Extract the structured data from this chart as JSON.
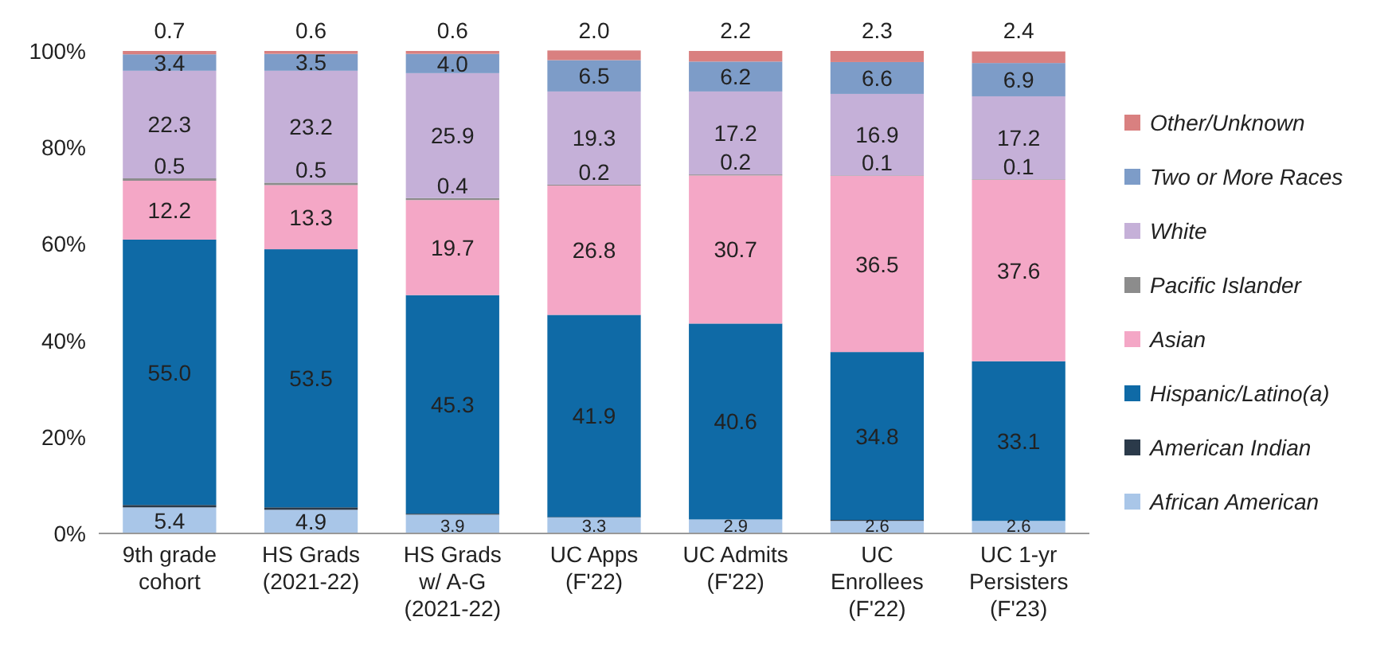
{
  "chart_data": {
    "type": "bar",
    "stacked": true,
    "categories": [
      "9th grade cohort",
      "HS Grads (2021-22)",
      "HS Grads w/ A-G (2021-22)",
      "UC Apps (F'22)",
      "UC Admits (F'22)",
      "UC Enrollees (F'22)",
      "UC 1-yr Persisters (F'23)"
    ],
    "series": [
      {
        "name": "African American",
        "color": "#a9c6e8",
        "values": [
          5.4,
          4.9,
          3.9,
          3.3,
          2.9,
          2.6,
          2.6
        ],
        "value_labels": [
          "5.4",
          "4.9",
          "3.9",
          "3.3",
          "2.9",
          "2.6",
          "2.6"
        ]
      },
      {
        "name": "American Indian",
        "color": "#2b3a4a",
        "values": [
          0.5,
          0.5,
          0.2,
          0.1,
          null,
          0.2,
          null
        ],
        "value_labels": [
          null,
          null,
          null,
          null,
          null,
          null,
          null
        ]
      },
      {
        "name": "Hispanic/Latino(a)",
        "color": "#0f6aa6",
        "values": [
          55.0,
          53.5,
          45.3,
          41.9,
          40.6,
          34.8,
          33.1
        ],
        "value_labels": [
          "55.0",
          "53.5",
          "45.3",
          "41.9",
          "40.6",
          "34.8",
          "33.1"
        ]
      },
      {
        "name": "Asian",
        "color": "#f4a7c6",
        "values": [
          12.2,
          13.3,
          19.7,
          26.8,
          30.7,
          36.5,
          37.6
        ],
        "value_labels": [
          "12.2",
          "13.3",
          "19.7",
          "26.8",
          "30.7",
          "36.5",
          "37.6"
        ]
      },
      {
        "name": "Pacific Islander",
        "color": "#8c8c8c",
        "values": [
          0.5,
          0.5,
          0.4,
          0.2,
          0.2,
          0.1,
          0.1
        ],
        "value_labels": [
          "0.5",
          "0.5",
          "0.4",
          "0.2",
          "0.2",
          "0.1",
          "0.1"
        ]
      },
      {
        "name": "White",
        "color": "#c5b0d8",
        "values": [
          22.3,
          23.2,
          25.9,
          19.3,
          17.2,
          16.9,
          17.2
        ],
        "value_labels": [
          "22.3",
          "23.2",
          "25.9",
          "19.3",
          "17.2",
          "16.9",
          "17.2"
        ]
      },
      {
        "name": "Two or More Races",
        "color": "#7d9cc8",
        "values": [
          3.4,
          3.5,
          4.0,
          6.5,
          6.2,
          6.6,
          6.9
        ],
        "value_labels": [
          "3.4",
          "3.5",
          "4.0",
          "6.5",
          "6.2",
          "6.6",
          "6.9"
        ]
      },
      {
        "name": "Other/Unknown",
        "color": "#d98080",
        "values": [
          0.7,
          0.6,
          0.6,
          2.0,
          2.2,
          2.3,
          2.4
        ],
        "value_labels": [
          "0.7",
          "0.6",
          "0.6",
          "2.0",
          "2.2",
          "2.3",
          "2.4"
        ]
      }
    ],
    "ylim": [
      0,
      100
    ],
    "yticks": [
      {
        "value": 0,
        "label": "0%"
      },
      {
        "value": 20,
        "label": "20%"
      },
      {
        "value": 40,
        "label": "40%"
      },
      {
        "value": 60,
        "label": "60%"
      },
      {
        "value": 80,
        "label": "80%"
      },
      {
        "value": 100,
        "label": "100%"
      }
    ],
    "legend": "right"
  }
}
